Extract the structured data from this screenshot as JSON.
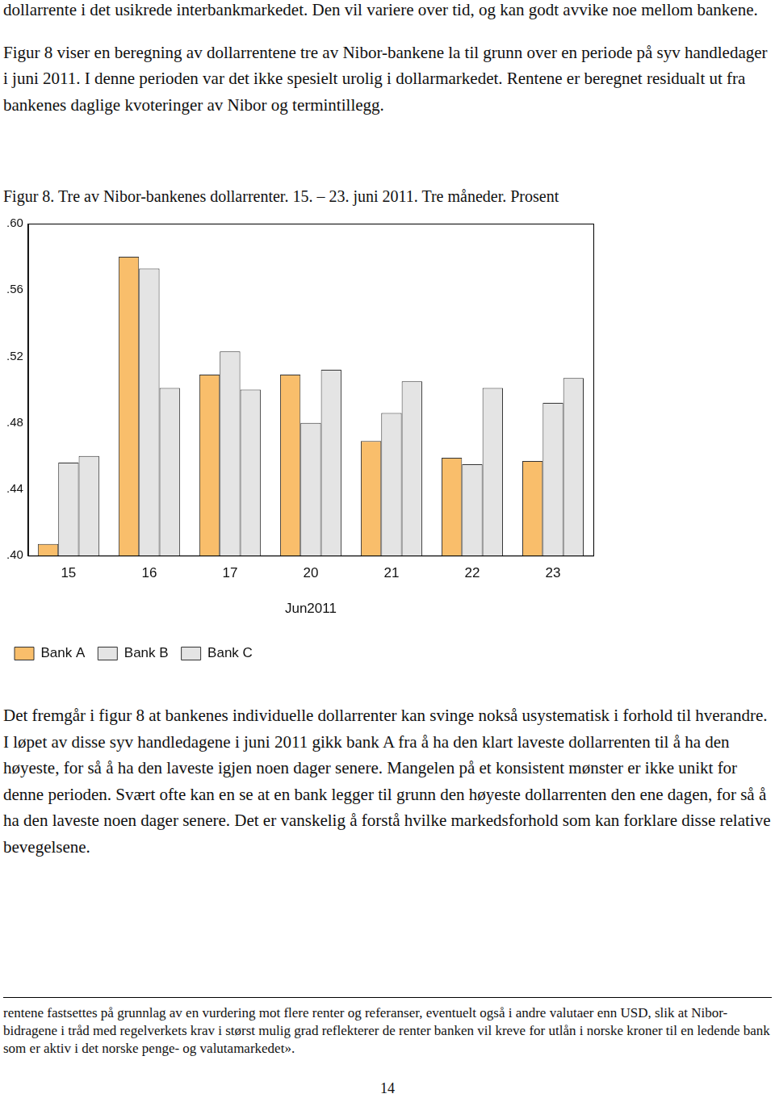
{
  "document": {
    "text_top": [
      "dollarrente i det usikrede interbankmarkedet. Den vil variere over tid, og kan godt avvike noe mellom bankene.",
      "Figur 8 viser en beregning av dollarrentene tre av Nibor-bankene la til grunn over en periode på syv handledager i juni 2011. I denne perioden var det ikke spesielt urolig i dollarmarkedet. Rentene er beregnet residualt ut fra bankenes daglige kvoteringer av Nibor og termintillegg."
    ],
    "text_bottom": "Det fremgår i figur 8 at bankenes individuelle dollarrenter kan svinge nokså usystematisk i forhold til hverandre. I løpet av disse syv handledagene i juni 2011 gikk bank A fra å ha den klart laveste dollarrenten til å ha den høyeste, for så å ha den laveste igjen noen dager senere. Mangelen på et konsistent mønster er ikke unikt for denne perioden. Svært ofte kan en se at en bank legger til grunn den høyeste dollarrenten den ene dagen, for så å ha den laveste noen dager senere. Det er vanskelig å forstå hvilke markedsforhold som kan forklare disse relative bevegelsene.",
    "footnote": "rentene fastsettes på grunnlag av en vurdering mot flere renter og referanser, eventuelt også i andre valutaer enn USD, slik at Nibor-bidragene i tråd med regelverkets krav i størst mulig grad reflekterer de renter banken vil kreve for utlån i norske kroner til en ledende bank som er aktiv i det norske penge- og valutamarkedet».",
    "page_number": "14"
  },
  "chart_data": {
    "type": "bar",
    "title": "Figur 8. Tre av Nibor-bankenes dollarrenter. 15. – 23. juni 2011. Tre måneder. Prosent",
    "categories": [
      "15",
      "16",
      "17",
      "20",
      "21",
      "22",
      "23"
    ],
    "x_label": "Jun2011",
    "series": [
      {
        "name": "Bank A",
        "color": "#f9be6b",
        "values": [
          0.407,
          0.58,
          0.509,
          0.509,
          0.469,
          0.459,
          0.457
        ]
      },
      {
        "name": "Bank B",
        "color": "#e4e4e4",
        "values": [
          0.456,
          0.573,
          0.523,
          0.48,
          0.486,
          0.455,
          0.492
        ]
      },
      {
        "name": "Bank C",
        "color": "#e4e4e4",
        "values": [
          0.46,
          0.501,
          0.5,
          0.512,
          0.505,
          0.501,
          0.507
        ]
      }
    ],
    "ylim": [
      0.4,
      0.6
    ],
    "yticks": [
      {
        "value": 0.4,
        "label": ".40"
      },
      {
        "value": 0.44,
        "label": ".44"
      },
      {
        "value": 0.48,
        "label": ".48"
      },
      {
        "value": 0.52,
        "label": ".52"
      },
      {
        "value": 0.56,
        "label": ".56"
      },
      {
        "value": 0.6,
        "label": ".60"
      }
    ],
    "grid": false,
    "legend": "bottom"
  }
}
